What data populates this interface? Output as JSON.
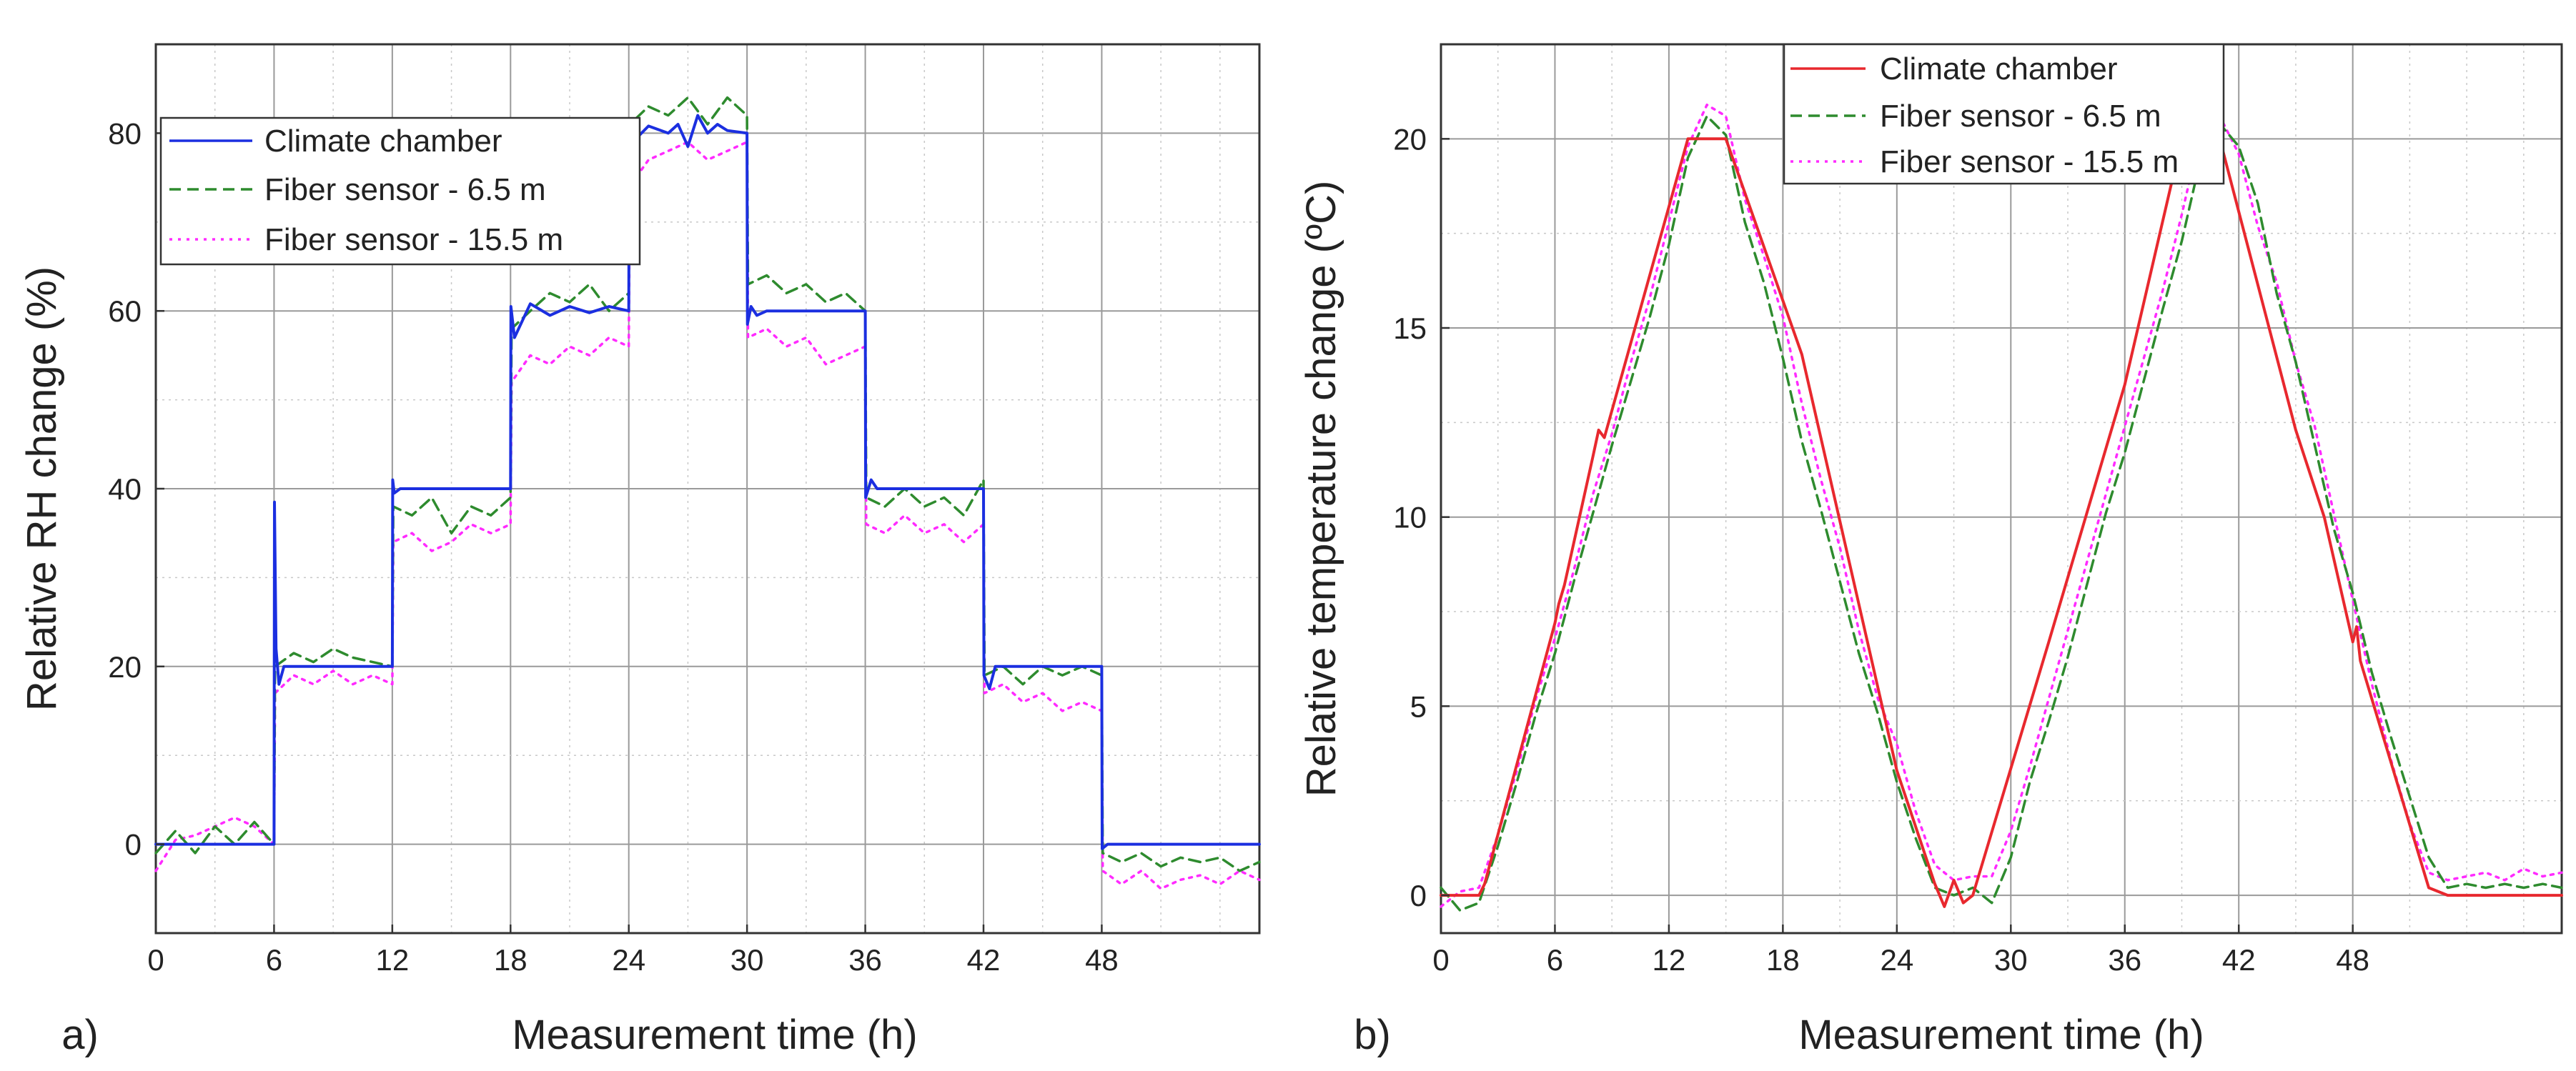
{
  "colors": {
    "chamber_rh": "#1b2fe0",
    "chamber_temp": "#e8282e",
    "fiber_6_5": "#2e8b2e",
    "fiber_15_5": "#ff2bff",
    "grid": "#9a9a9a"
  },
  "chart_data": [
    {
      "type": "line",
      "panel": "a)",
      "title": "",
      "xlabel": "Measurement time (h)",
      "ylabel": "Relative RH change (%)",
      "xlim": [
        0,
        56
      ],
      "ylim": [
        -10,
        90
      ],
      "xticks": [
        0,
        6,
        12,
        18,
        24,
        30,
        36,
        42,
        48
      ],
      "yticks": [
        0,
        20,
        40,
        60,
        80
      ],
      "legend_position": "top-left",
      "series": [
        {
          "name": "Climate chamber",
          "style": "solid",
          "color": "#1b2fe0",
          "x": [
            0,
            6,
            6.02,
            6.1,
            6.25,
            6.5,
            12,
            12.02,
            12.1,
            12.4,
            18,
            18.02,
            18.2,
            19,
            20,
            21,
            22,
            23,
            24,
            24.02,
            24.2,
            25,
            26,
            26.5,
            27,
            27.5,
            28,
            28.5,
            29,
            30,
            30.02,
            30.2,
            30.5,
            31,
            36,
            36.02,
            36.3,
            36.6,
            42,
            42.02,
            42.3,
            42.6,
            48,
            48.02,
            48.3,
            56
          ],
          "y": [
            0,
            0,
            38.5,
            22,
            18,
            20,
            20,
            41,
            39.5,
            40,
            40,
            60.5,
            57,
            60.8,
            59.5,
            60.5,
            59.8,
            60.5,
            60,
            80.5,
            79,
            80.8,
            80,
            81,
            78.5,
            82,
            80,
            81,
            80.3,
            80,
            58.5,
            60.5,
            59.5,
            60,
            60,
            39,
            41,
            40,
            40,
            19,
            17.5,
            20,
            20,
            -0.5,
            0,
            0
          ]
        },
        {
          "name": "Fiber sensor - 6.5 m",
          "style": "dashed",
          "color": "#2e8b2e",
          "x": [
            0,
            1,
            2,
            3,
            4,
            5,
            6,
            6.05,
            7,
            8,
            9,
            10,
            11,
            12,
            12.05,
            13,
            14,
            15,
            16,
            17,
            18,
            18.05,
            19,
            20,
            21,
            22,
            23,
            24,
            24.05,
            25,
            26,
            27,
            28,
            29,
            30,
            30.05,
            31,
            32,
            33,
            34,
            35,
            36,
            36.05,
            37,
            38,
            39,
            40,
            41,
            42,
            42.05,
            43,
            44,
            45,
            46,
            47,
            48,
            48.05,
            49,
            50,
            51,
            52,
            53,
            54,
            55,
            56
          ],
          "y": [
            -1,
            1.5,
            -1,
            2,
            0,
            2.5,
            0,
            20,
            21.5,
            20.5,
            22,
            21,
            20.5,
            20,
            38,
            37,
            39,
            35,
            38,
            37,
            39,
            58,
            60,
            62,
            61,
            63,
            60,
            62,
            81,
            83,
            82,
            84,
            81,
            84,
            82,
            63,
            64,
            62,
            63,
            61,
            62,
            60,
            39,
            38,
            40,
            38,
            39,
            37,
            41,
            19,
            20,
            18,
            20,
            19,
            20,
            19,
            -1,
            -2,
            -1,
            -2.5,
            -1.5,
            -2,
            -1.5,
            -3,
            -2
          ]
        },
        {
          "name": "Fiber sensor - 15.5 m",
          "style": "dotted",
          "color": "#ff2bff",
          "x": [
            0,
            1,
            2,
            3,
            4,
            5,
            6,
            6.05,
            7,
            8,
            9,
            10,
            11,
            12,
            12.05,
            13,
            14,
            15,
            16,
            17,
            18,
            18.05,
            19,
            20,
            21,
            22,
            23,
            24,
            24.05,
            25,
            26,
            27,
            28,
            29,
            30,
            30.05,
            31,
            32,
            33,
            34,
            35,
            36,
            36.05,
            37,
            38,
            39,
            40,
            41,
            42,
            42.05,
            43,
            44,
            45,
            46,
            47,
            48,
            48.05,
            49,
            50,
            51,
            52,
            53,
            54,
            55,
            56
          ],
          "y": [
            -3,
            0.5,
            1,
            2,
            3,
            2,
            0,
            17,
            19,
            18,
            19.5,
            18,
            19,
            18,
            34,
            35,
            33,
            34,
            36,
            35,
            36,
            52,
            55,
            54,
            56,
            55,
            57,
            56,
            74,
            77,
            78,
            79,
            77,
            78,
            79,
            57,
            58,
            56,
            57,
            54,
            55,
            56,
            36,
            35,
            37,
            35,
            36,
            34,
            36,
            17,
            18,
            16,
            17,
            15,
            16,
            15,
            -3,
            -4.5,
            -3,
            -5,
            -4,
            -3.5,
            -4.5,
            -3,
            -4
          ]
        }
      ]
    },
    {
      "type": "line",
      "panel": "b)",
      "title": "",
      "xlabel": "Measurement time (h)",
      "ylabel": "Relative temperature change (ºC)",
      "xlim": [
        0,
        59
      ],
      "ylim": [
        -1,
        22.5
      ],
      "xticks": [
        0,
        6,
        12,
        18,
        24,
        30,
        36,
        42,
        48
      ],
      "yticks": [
        0,
        5,
        10,
        15,
        20
      ],
      "legend_position": "top-center",
      "series": [
        {
          "name": "Climate chamber",
          "style": "solid",
          "color": "#e8282e",
          "x": [
            0,
            1,
            2,
            2.3,
            6,
            6.2,
            6.5,
            8,
            8.3,
            8.6,
            13,
            15,
            19,
            24,
            26,
            26.5,
            27,
            27.5,
            28,
            32,
            36,
            39,
            41,
            45,
            46.5,
            48,
            48.2,
            48.4,
            52,
            53,
            59
          ],
          "y": [
            0,
            0,
            0,
            0.3,
            7.2,
            7.7,
            8.2,
            11.6,
            12.3,
            12.1,
            20,
            20,
            14.3,
            3.3,
            0.3,
            -0.3,
            0.4,
            -0.2,
            0,
            6.7,
            13.5,
            20,
            20,
            12.3,
            10,
            6.7,
            7.1,
            6.2,
            0.2,
            0,
            0
          ]
        },
        {
          "name": "Fiber sensor - 6.5 m",
          "style": "dashed",
          "color": "#2e8b2e",
          "x": [
            0,
            1,
            2,
            3,
            4,
            5,
            6,
            7,
            8,
            9,
            10,
            11,
            12,
            13,
            14,
            15,
            16,
            17,
            18,
            19,
            20,
            21,
            22,
            23,
            24,
            25,
            26,
            27,
            28,
            29,
            30,
            31,
            32,
            33,
            34,
            35,
            36,
            37,
            38,
            39,
            40,
            41,
            42,
            43,
            44,
            45,
            46,
            47,
            48,
            49,
            50,
            51,
            52,
            53,
            54,
            55,
            56,
            57,
            58,
            59
          ],
          "y": [
            0.2,
            -0.4,
            -0.2,
            1.3,
            3.0,
            4.8,
            6.4,
            8.3,
            10.1,
            11.9,
            13.6,
            15.3,
            17.2,
            19.5,
            20.6,
            20.1,
            17.8,
            16.2,
            14.2,
            12.0,
            10.2,
            8.3,
            6.4,
            4.8,
            3.0,
            1.5,
            0.2,
            0,
            0.2,
            -0.2,
            1.0,
            3.0,
            4.6,
            6.3,
            8.2,
            10.1,
            11.7,
            13.6,
            15.5,
            17.3,
            19.5,
            20.4,
            19.8,
            18.3,
            15.9,
            14.1,
            11.9,
            9.7,
            8.0,
            5.9,
            4.2,
            2.6,
            1.0,
            0.2,
            0.3,
            0.2,
            0.3,
            0.2,
            0.3,
            0.2
          ]
        },
        {
          "name": "Fiber sensor - 15.5 m",
          "style": "dotted",
          "color": "#ff2bff",
          "x": [
            0,
            1,
            2,
            3,
            4,
            5,
            6,
            7,
            8,
            9,
            10,
            11,
            12,
            13,
            14,
            15,
            16,
            17,
            18,
            19,
            20,
            21,
            22,
            23,
            24,
            25,
            26,
            27,
            28,
            29,
            30,
            31,
            32,
            33,
            34,
            35,
            36,
            37,
            38,
            39,
            40,
            41,
            42,
            43,
            44,
            45,
            46,
            47,
            48,
            49,
            50,
            51,
            52,
            53,
            54,
            55,
            56,
            57,
            58,
            59
          ],
          "y": [
            -0.3,
            0.1,
            0.2,
            1.6,
            3.3,
            5.2,
            6.8,
            8.6,
            10.6,
            12.2,
            14.1,
            15.8,
            17.8,
            19.8,
            20.9,
            20.6,
            18.4,
            16.9,
            15.3,
            13.0,
            11.0,
            9.2,
            7.0,
            5.2,
            4.0,
            2.2,
            0.8,
            0.4,
            0.5,
            0.5,
            1.7,
            3.4,
            5.2,
            7.0,
            8.8,
            10.6,
            12.4,
            14.2,
            16.0,
            18.0,
            20.2,
            20.6,
            19.6,
            17.7,
            16.2,
            14.1,
            12.4,
            10.1,
            7.8,
            5.6,
            3.6,
            1.9,
            0.6,
            0.4,
            0.5,
            0.6,
            0.4,
            0.7,
            0.5,
            0.6
          ]
        }
      ]
    }
  ]
}
